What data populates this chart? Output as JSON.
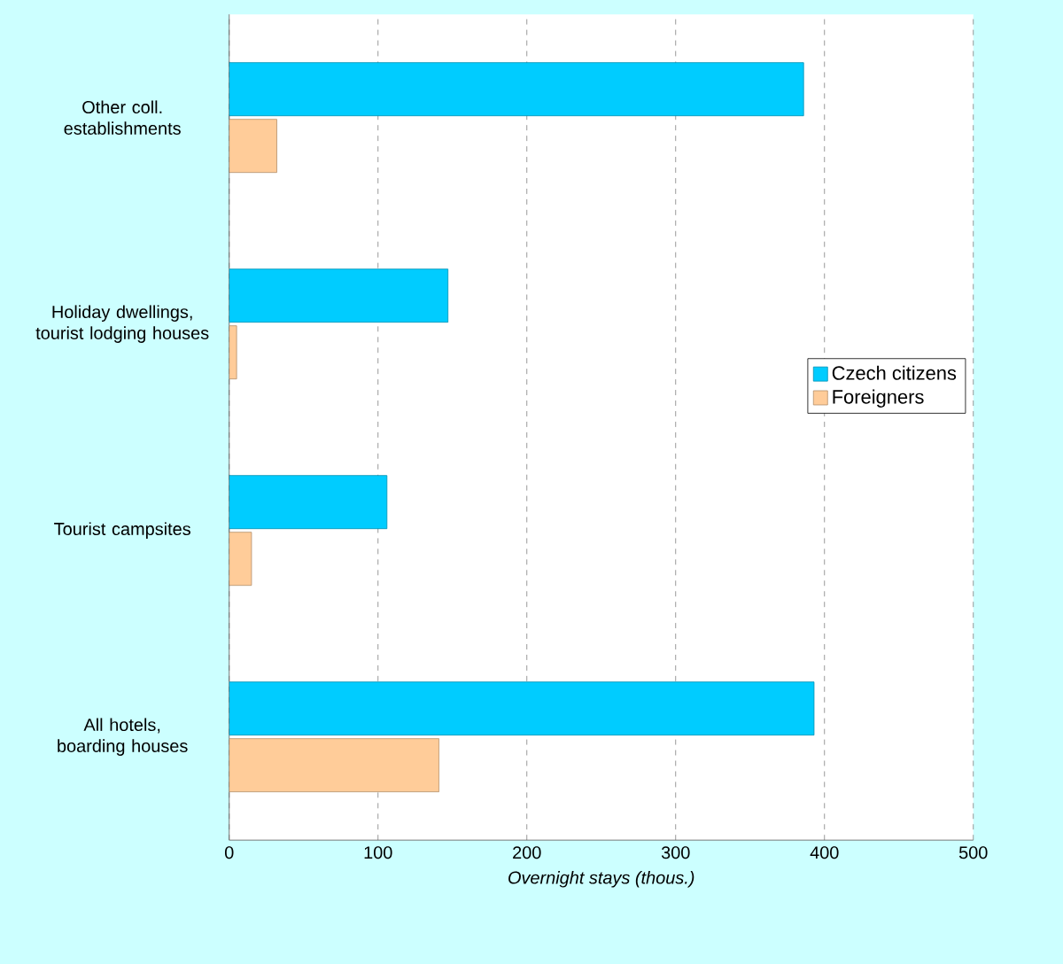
{
  "chart_data": {
    "type": "bar",
    "orientation": "horizontal",
    "xlabel": "Overnight stays (thous.)",
    "categories": [
      "Other coll. establishments",
      "Holiday dwellings, tourist lodging houses",
      "Tourist campsites",
      "All hotels, boarding houses"
    ],
    "series": [
      {
        "name": "Czech citizens",
        "color": "#00ccff",
        "values": [
          386,
          147,
          106,
          393
        ]
      },
      {
        "name": "Foreigners",
        "color": "#ffcc99",
        "values": [
          32,
          5,
          15,
          141
        ]
      }
    ],
    "xlim": [
      0,
      500
    ],
    "xticks": [
      0,
      100,
      200,
      300,
      400,
      500
    ],
    "grid": "x",
    "legend": "right"
  }
}
